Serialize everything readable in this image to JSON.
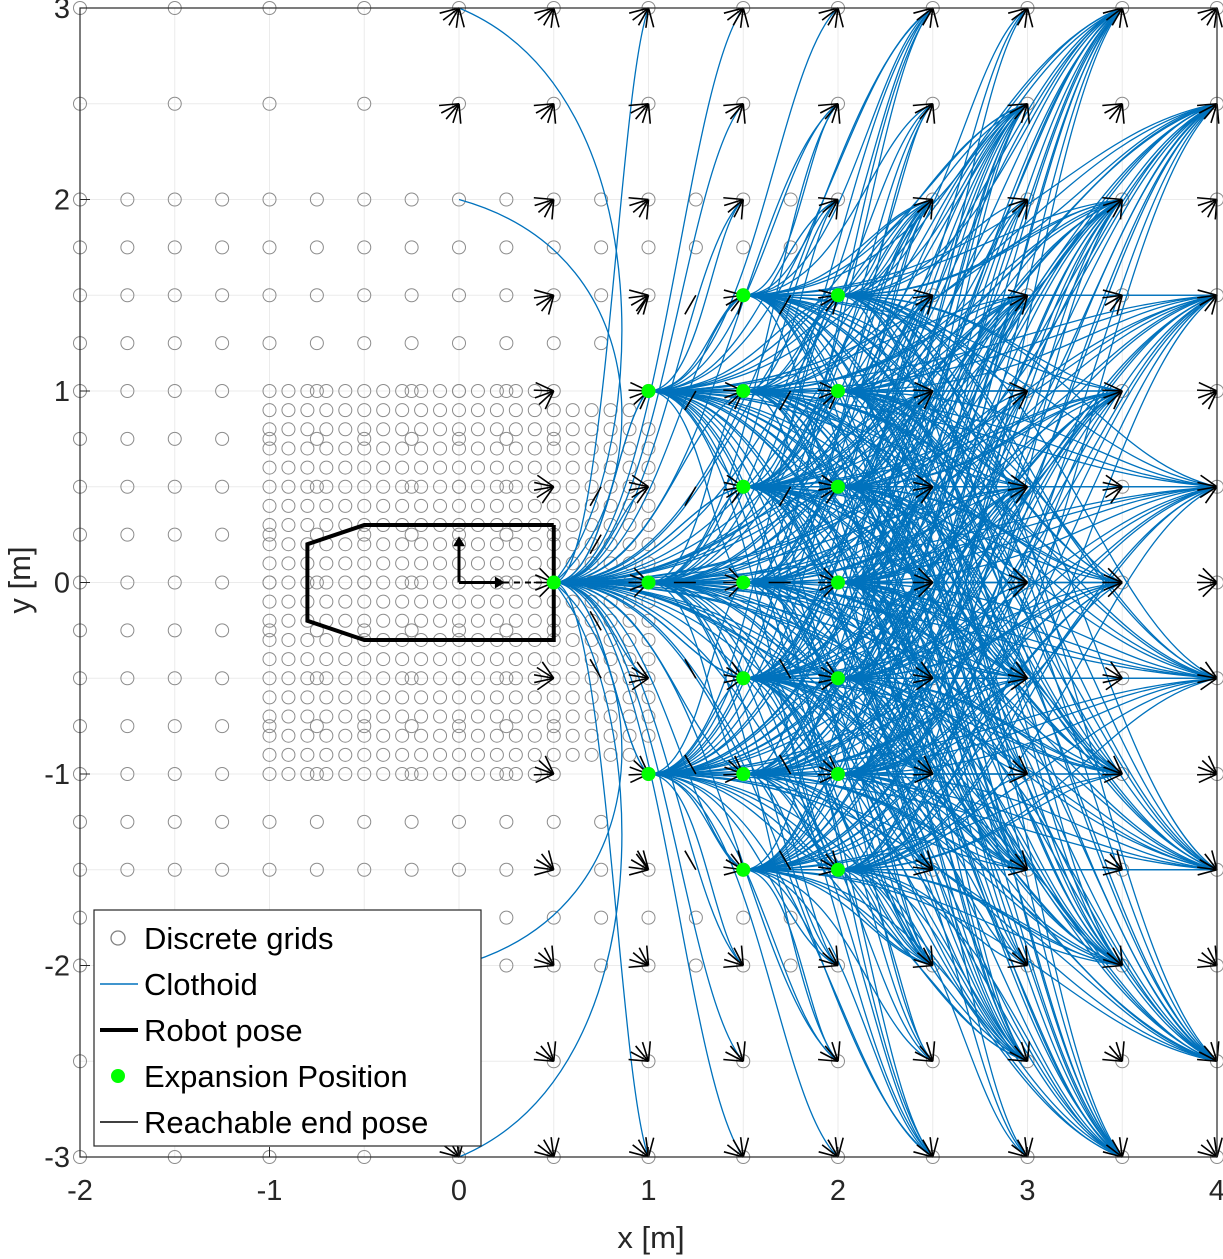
{
  "chart_data": {
    "type": "scatter",
    "title": "",
    "xlabel": "x [m]",
    "ylabel": "y [m]",
    "xlim": [
      -2,
      4
    ],
    "ylim": [
      -3,
      3
    ],
    "xticks": [
      -2,
      -1,
      0,
      1,
      2,
      3,
      4
    ],
    "yticks": [
      -3,
      -2,
      -1,
      0,
      1,
      2,
      3
    ],
    "xtick_labels": [
      "-2",
      "-1",
      "0",
      "1",
      "2",
      "3",
      "4"
    ],
    "ytick_labels": [
      "-3",
      "-2",
      "-1",
      "0",
      "1",
      "2",
      "3"
    ],
    "grid": true,
    "legend_position": "bottom-left",
    "legend": [
      {
        "label": "Discrete grids",
        "marker": "open-circle",
        "color": "#808080"
      },
      {
        "label": "Clothoid",
        "marker": "line",
        "color": "#0072BD"
      },
      {
        "label": "Robot pose",
        "marker": "thick-line",
        "color": "#000000"
      },
      {
        "label": "Expansion Position",
        "marker": "filled-circle",
        "color": "#00FF00"
      },
      {
        "label": "Reachable end pose",
        "marker": "line",
        "color": "#000000"
      }
    ],
    "series": [
      {
        "name": "Discrete grids",
        "fine_grid": {
          "x_range": [
            -1,
            1
          ],
          "y_range": [
            -1,
            1
          ],
          "step": 0.1,
          "outer_radius": 1.0,
          "outer_center": [
            0.5,
            0
          ]
        },
        "mid_grid": {
          "x_range": [
            -2,
            1.75
          ],
          "y_range": [
            -2,
            2
          ],
          "step": 0.25
        },
        "coarse_grid": {
          "x_range": [
            -2,
            4
          ],
          "y_range": [
            -3,
            3
          ],
          "step": 0.5
        }
      },
      {
        "name": "Robot pose",
        "outline": [
          [
            0.5,
            0.3
          ],
          [
            -0.5,
            0.3
          ],
          [
            -0.8,
            0.2
          ],
          [
            -0.8,
            -0.2
          ],
          [
            -0.5,
            -0.3
          ],
          [
            0.5,
            -0.3
          ],
          [
            0.5,
            0.3
          ]
        ],
        "origin": [
          0,
          0
        ],
        "x_axis_end": [
          0.2,
          0
        ],
        "y_axis_end": [
          0,
          0.2
        ],
        "dashed_heading": [
          [
            0,
            0
          ],
          [
            0.5,
            0
          ]
        ]
      },
      {
        "name": "Expansion Position",
        "points": [
          [
            0.5,
            0
          ],
          [
            1,
            0
          ],
          [
            1.5,
            0
          ],
          [
            2,
            0
          ],
          [
            1,
            1
          ],
          [
            1,
            -1
          ],
          [
            1.5,
            1
          ],
          [
            1.5,
            -1
          ],
          [
            2,
            1
          ],
          [
            2,
            -1
          ],
          [
            1.5,
            0.5
          ],
          [
            1.5,
            -0.5
          ],
          [
            2,
            0.5
          ],
          [
            2,
            -0.5
          ],
          [
            1.5,
            1.5
          ],
          [
            1.5,
            -1.5
          ],
          [
            2,
            1.5
          ],
          [
            2,
            -1.5
          ]
        ]
      },
      {
        "name": "Reachable end pose",
        "heading_fan_deg": [
          -45,
          -22.5,
          0,
          22.5,
          45
        ],
        "coarse_end_x": [
          0,
          0.5,
          1,
          1.5,
          2,
          2.5,
          3,
          3.5,
          4
        ],
        "coarse_end_y": [
          -3,
          -2.5,
          -2,
          -1.5,
          -1,
          -0.5,
          0,
          0.5,
          1,
          1.5,
          2,
          2.5,
          3
        ],
        "near_end_points": [
          [
            1.25,
            1.5
          ],
          [
            1.25,
            1
          ],
          [
            1.25,
            0.5
          ],
          [
            1.25,
            0
          ],
          [
            1.25,
            -0.5
          ],
          [
            1.25,
            -1
          ],
          [
            1.25,
            -1.5
          ],
          [
            1.75,
            1.5
          ],
          [
            1.75,
            1
          ],
          [
            1.75,
            0.5
          ],
          [
            1.75,
            0
          ],
          [
            1.75,
            -0.5
          ],
          [
            1.75,
            -1
          ],
          [
            1.75,
            -1.5
          ],
          [
            1,
            1.5
          ],
          [
            1,
            -1.5
          ],
          [
            0.75,
            0.5
          ],
          [
            0.75,
            -0.5
          ],
          [
            0.75,
            0.25
          ],
          [
            0.75,
            -0.25
          ]
        ]
      },
      {
        "name": "Clothoid",
        "note_only_for_rendering": false,
        "origins": [
          [
            0.5,
            0
          ],
          [
            1,
            0
          ],
          [
            1.5,
            0
          ],
          [
            2,
            0
          ],
          [
            1,
            1
          ],
          [
            1,
            -1
          ],
          [
            1.5,
            1
          ],
          [
            1.5,
            -1
          ],
          [
            2,
            1
          ],
          [
            2,
            -1
          ],
          [
            1.5,
            0.5
          ],
          [
            1.5,
            -0.5
          ],
          [
            2,
            0.5
          ],
          [
            2,
            -0.5
          ],
          [
            1.5,
            1.5
          ],
          [
            1.5,
            -1.5
          ],
          [
            2,
            1.5
          ],
          [
            2,
            -1.5
          ]
        ],
        "targets_x": [
          0,
          0.5,
          1,
          1.5,
          2,
          2.5,
          3,
          3.5,
          4
        ],
        "targets_y": [
          -3,
          -2.5,
          -2,
          -1.5,
          -1,
          -0.5,
          0,
          0.5,
          1,
          1.5,
          2,
          2.5,
          3
        ]
      }
    ]
  }
}
